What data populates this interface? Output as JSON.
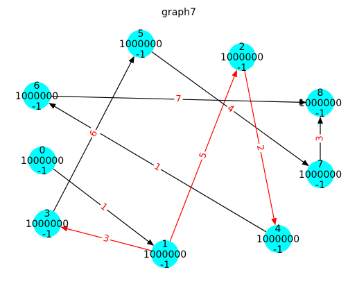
{
  "title": "graph7",
  "colors": {
    "node_fill": "#00ffff",
    "edge_black": "#000000",
    "edge_red": "#ff0000"
  },
  "nodes": [
    {
      "id": "0",
      "dist": "1000000",
      "pred": "-1"
    },
    {
      "id": "1",
      "dist": "1000000",
      "pred": "-1"
    },
    {
      "id": "2",
      "dist": "1000000",
      "pred": "-1"
    },
    {
      "id": "3",
      "dist": "1000000",
      "pred": "-1"
    },
    {
      "id": "4",
      "dist": "1000000",
      "pred": "-1"
    },
    {
      "id": "5",
      "dist": "1000000",
      "pred": "-1"
    },
    {
      "id": "6",
      "dist": "1000000",
      "pred": "-1"
    },
    {
      "id": "7",
      "dist": "1000000",
      "pred": "-1"
    },
    {
      "id": "8",
      "dist": "1000000",
      "pred": "-1"
    }
  ],
  "edges": [
    {
      "from": "0",
      "to": "1",
      "weight": "1",
      "color": "#ff0000",
      "label_color": "#ff0000",
      "line_color": "#000000",
      "directed": true
    },
    {
      "from": "1",
      "to": "3",
      "weight": "3",
      "color": "#ff0000",
      "label_color": "#ff0000",
      "line_color": "#ff0000",
      "directed": true
    },
    {
      "from": "1",
      "to": "2",
      "weight": "5",
      "color": "#ff0000",
      "label_color": "#ff0000",
      "line_color": "#ff0000",
      "directed": true
    },
    {
      "from": "3",
      "to": "5",
      "weight": "6",
      "color": "#ff0000",
      "label_color": "#ff0000",
      "line_color": "#000000",
      "directed": true
    },
    {
      "from": "5",
      "to": "7",
      "weight": "4",
      "color": "#ff0000",
      "label_color": "#ff0000",
      "line_color": "#000000",
      "directed": true
    },
    {
      "from": "2",
      "to": "4",
      "weight": "2",
      "color": "#ff0000",
      "label_color": "#ff0000",
      "line_color": "#ff0000",
      "directed": true
    },
    {
      "from": "4",
      "to": "6",
      "weight": "1",
      "color": "#ff0000",
      "label_color": "#ff0000",
      "line_color": "#000000",
      "directed": true
    },
    {
      "from": "6",
      "to": "8",
      "weight": "7",
      "color": "#ff0000",
      "label_color": "#ff0000",
      "line_color": "#000000",
      "directed": true
    },
    {
      "from": "7",
      "to": "8",
      "weight": "3",
      "color": "#ff0000",
      "label_color": "#ff0000",
      "line_color": "#000000",
      "directed": true
    }
  ]
}
